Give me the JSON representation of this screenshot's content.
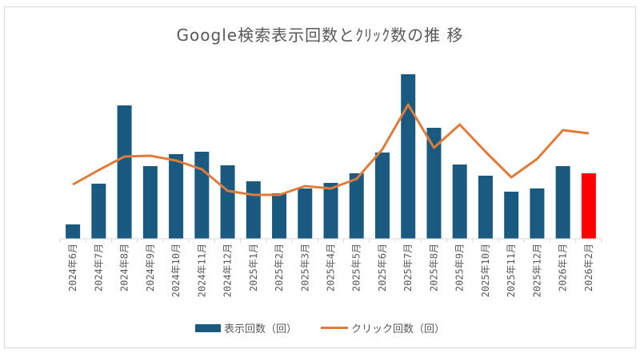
{
  "chart_data": {
    "type": "bar",
    "title": "Google検索表示回数とｸﾘｯｸ数の推 移",
    "categories": [
      "2024年6月",
      "2024年7月",
      "2024年8月",
      "2024年9月",
      "2024年10月",
      "2024年11月",
      "2024年12月",
      "2025年1月",
      "2025年2月",
      "2025年3月",
      "2025年4月",
      "2025年5月",
      "2025年6月",
      "2025年7月",
      "2025年8月",
      "2025年9月",
      "2025年10月",
      "2025年11月",
      "2025年12月",
      "2026年1月",
      "2026年2月"
    ],
    "series": [
      {
        "name": "表示回数（回）",
        "type": "bar",
        "color": "#1a5a80",
        "highlight_last_color": "#ff0000",
        "values": [
          18,
          69,
          167,
          91,
          106,
          109,
          92,
          72,
          57,
          63,
          70,
          82,
          108,
          206,
          139,
          93,
          79,
          59,
          63,
          91,
          82
        ]
      },
      {
        "name": "クリック回数（回）",
        "type": "line",
        "color": "#e07b39",
        "values": [
          68,
          86,
          103,
          104,
          98,
          87,
          60,
          55,
          55,
          66,
          63,
          75,
          112,
          168,
          114,
          143,
          109,
          77,
          100,
          136,
          132
        ]
      }
    ],
    "xlabel": "",
    "ylabel": "",
    "ylim": [
      0,
      220
    ],
    "grid": false,
    "legend": "bottom",
    "note": ""
  }
}
